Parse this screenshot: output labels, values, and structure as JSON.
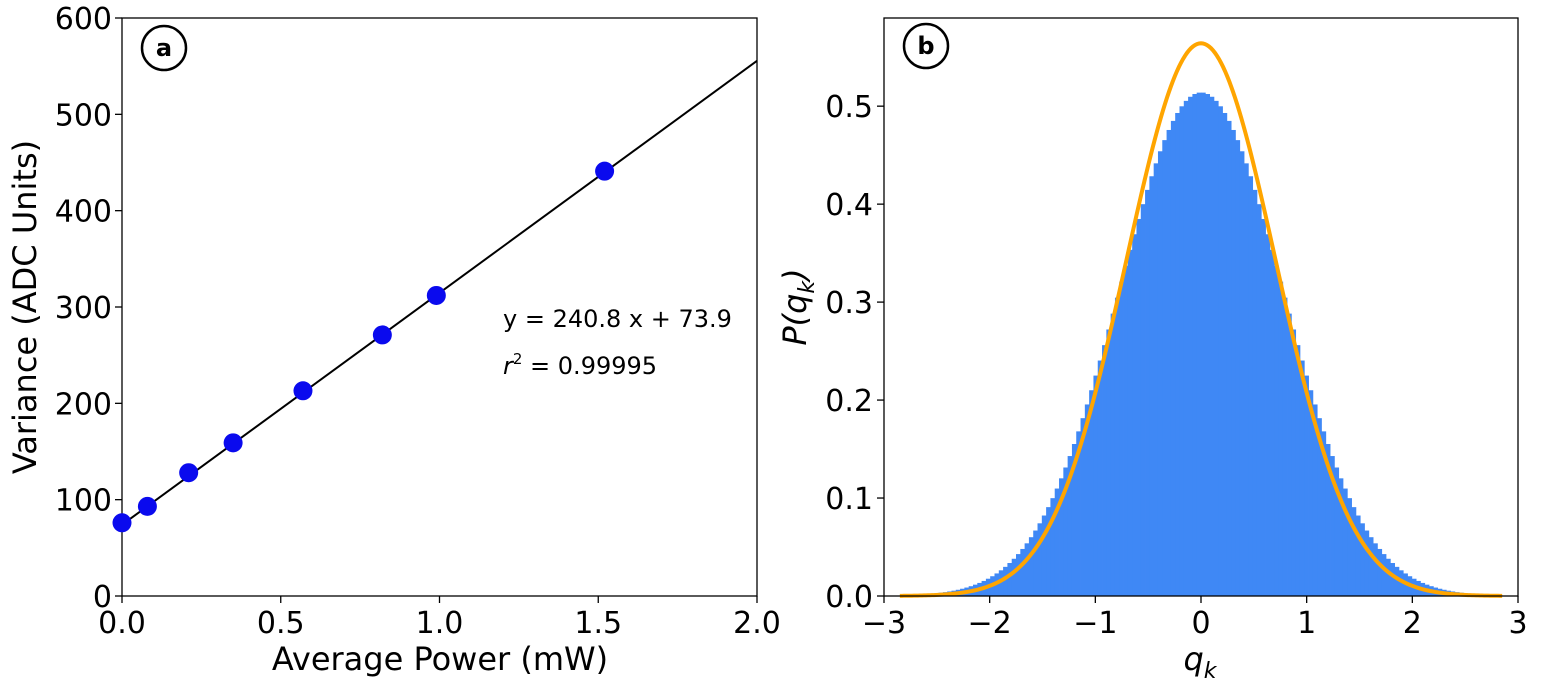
{
  "chart_data": [
    {
      "panel": "a",
      "type": "scatter",
      "xlabel": "Average Power (mW)",
      "ylabel": "Variance (ADC Units)",
      "xlim": [
        0,
        2
      ],
      "ylim": [
        0,
        600
      ],
      "xticks": [
        0.0,
        0.5,
        1.0,
        1.5,
        2.0
      ],
      "xtick_labels": [
        "0.0",
        "0.5",
        "1.0",
        "1.5",
        "2.0"
      ],
      "yticks": [
        0,
        100,
        200,
        300,
        400,
        500,
        600
      ],
      "ytick_labels": [
        "0",
        "100",
        "200",
        "300",
        "400",
        "500",
        "600"
      ],
      "marker_color": "#0a0aee",
      "line_color": "#000000",
      "points": [
        {
          "x": 0.0,
          "y": 76
        },
        {
          "x": 0.08,
          "y": 93
        },
        {
          "x": 0.21,
          "y": 128
        },
        {
          "x": 0.35,
          "y": 159
        },
        {
          "x": 0.57,
          "y": 213
        },
        {
          "x": 0.82,
          "y": 271
        },
        {
          "x": 0.99,
          "y": 312
        },
        {
          "x": 1.52,
          "y": 441
        }
      ],
      "fit": {
        "slope": 240.8,
        "intercept": 73.9
      },
      "annotation_equation": "y = 240.8 x + 73.9",
      "annotation_r2_symbol": "r",
      "annotation_r2_exp": "2",
      "annotation_r2_value": " = 0.99995"
    },
    {
      "panel": "b",
      "type": "bar",
      "subtype": "histogram+curve",
      "xlabel_main": "q",
      "xlabel_sub": "k",
      "ylabel_prefix": "P(",
      "ylabel_main": "q",
      "ylabel_sub": "k",
      "ylabel_suffix": ")",
      "xlim": [
        -3,
        3
      ],
      "ylim": [
        0,
        0.59
      ],
      "xticks": [
        -3,
        -2,
        -1,
        0,
        1,
        2,
        3
      ],
      "xtick_labels": [
        "−3",
        "−2",
        "−1",
        "0",
        "1",
        "2",
        "3"
      ],
      "yticks": [
        0.0,
        0.1,
        0.2,
        0.3,
        0.4,
        0.5
      ],
      "ytick_labels": [
        "0.0",
        "0.1",
        "0.2",
        "0.3",
        "0.4",
        "0.5"
      ],
      "histogram_color": "#3f88f5",
      "curve_color": "#ffa500",
      "histogram": {
        "range": [
          -2.85,
          2.85
        ],
        "bins": 140,
        "peak": 0.514,
        "sigma": 0.776
      },
      "curve": {
        "range": [
          -2.85,
          2.85
        ],
        "peak": 0.5642,
        "sigma": 0.7071
      }
    }
  ]
}
